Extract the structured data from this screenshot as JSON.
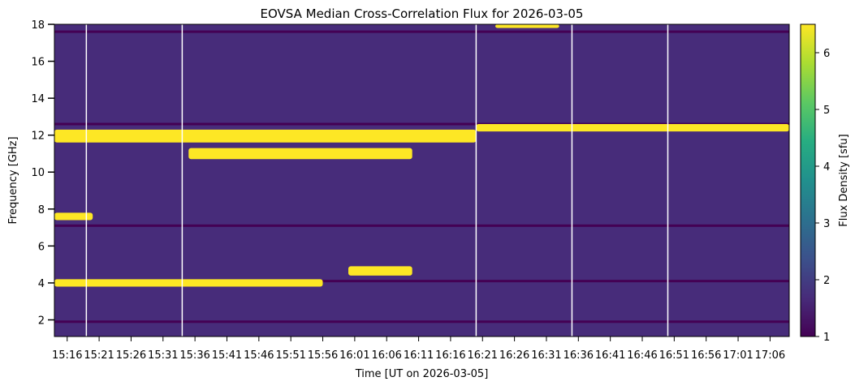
{
  "chart_data": {
    "type": "heatmap",
    "title": "EOVSA Median Cross-Correlation Flux for 2026-03-05",
    "xlabel": "Time [UT on 2026-03-05]",
    "ylabel": "Frequency [GHz]",
    "colorbar_label": "Flux Density [sfu]",
    "colormap": "viridis",
    "colormap_stops": [
      "#440154",
      "#472c7a",
      "#3b518b",
      "#2c718e",
      "#21908d",
      "#27ad81",
      "#5cc863",
      "#aadc32",
      "#fde725"
    ],
    "x_ticks": [
      "15:16",
      "15:21",
      "15:26",
      "15:31",
      "15:36",
      "15:41",
      "15:46",
      "15:51",
      "15:56",
      "16:01",
      "16:06",
      "16:11",
      "16:16",
      "16:21",
      "16:26",
      "16:31",
      "16:36",
      "16:41",
      "16:46",
      "16:51",
      "16:56",
      "17:01",
      "17:06"
    ],
    "x_range": [
      "15:14",
      "17:09"
    ],
    "y_ticks": [
      2,
      4,
      6,
      8,
      10,
      12,
      14,
      16,
      18
    ],
    "y_range": [
      1.1,
      18
    ],
    "clim": [
      1,
      6.5
    ],
    "colorbar_ticks": [
      1,
      2,
      3,
      4,
      5,
      6
    ],
    "background_flux": 2.0,
    "bright_bands": [
      {
        "t_start": "15:14",
        "t_end": "16:20",
        "f_low": 11.6,
        "f_high": 12.3,
        "flux": 6.5
      },
      {
        "t_start": "16:20",
        "t_end": "17:09",
        "f_low": 12.2,
        "f_high": 12.6,
        "flux": 6.5
      },
      {
        "t_start": "15:35",
        "t_end": "16:10",
        "f_low": 10.7,
        "f_high": 11.3,
        "flux": 6.5
      },
      {
        "t_start": "15:14",
        "t_end": "15:20",
        "f_low": 7.4,
        "f_high": 7.8,
        "flux": 6.5
      },
      {
        "t_start": "15:14",
        "t_end": "15:56",
        "f_low": 3.8,
        "f_high": 4.2,
        "flux": 6.5
      },
      {
        "t_start": "16:00",
        "t_end": "16:10",
        "f_low": 4.4,
        "f_high": 4.9,
        "flux": 6.5
      },
      {
        "t_start": "16:23",
        "t_end": "16:33",
        "f_low": 17.8,
        "f_high": 18.0,
        "flux": 6.5
      }
    ],
    "dark_lines": [
      {
        "f": 17.6,
        "flux": 1.0
      },
      {
        "f": 12.6,
        "flux": 1.0
      },
      {
        "f": 7.1,
        "flux": 1.0
      },
      {
        "f": 4.1,
        "flux": 1.0
      },
      {
        "f": 1.9,
        "flux": 1.0
      }
    ],
    "gap_times": [
      "15:19",
      "15:34",
      "16:20",
      "16:35",
      "16:50"
    ]
  }
}
